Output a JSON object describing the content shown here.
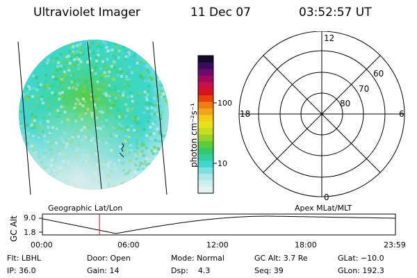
{
  "header": {
    "instrument": "Ultraviolet Imager",
    "date": "11 Dec 07",
    "time": "03:52:57 UT"
  },
  "colorbar": {
    "label": "photon cm⁻²s⁻¹",
    "ticks": [
      "100",
      "10"
    ],
    "colors": [
      "#e6f2f2",
      "#cfeeee",
      "#b3e6e6",
      "#7fdede",
      "#3fd6d0",
      "#2ecfa0",
      "#35c96a",
      "#5ecc3a",
      "#97d12c",
      "#c6dc20",
      "#e6e21e",
      "#f2cc1a",
      "#f2a51a",
      "#ee7d14",
      "#e6400e",
      "#d8121e",
      "#c80f46",
      "#a00c5a",
      "#6e0a6e",
      "#3a0a5e",
      "#140a2e"
    ]
  },
  "polar": {
    "mlt_labels": {
      "top": "12",
      "left": "18",
      "right": "6",
      "bottom": "0"
    },
    "lat_labels": [
      "60",
      "70",
      "80"
    ]
  },
  "timeline": {
    "left_label": "Geographic Lat/Lon",
    "right_label": "Apex MLat/MLT",
    "y_axis_title": "GC Alt",
    "y_ticks": [
      "9.0",
      "1.8"
    ],
    "x_ticks": [
      "00:00",
      "06:00",
      "12:00",
      "18:00",
      "23:59"
    ],
    "current_time_hours": 3.88,
    "current_marker_color": "#e00000"
  },
  "status": {
    "row1": [
      {
        "key": "flt",
        "text": "Flt: LBHL"
      },
      {
        "key": "door",
        "text": "Door: Open"
      },
      {
        "key": "mode",
        "text": "Mode: Normal"
      },
      {
        "key": "gcalt",
        "text": "GC Alt: 3.7 Re"
      },
      {
        "key": "glat",
        "text": "GLat: −10.0"
      }
    ],
    "row2": [
      {
        "key": "ip",
        "text": "IP: 36.0"
      },
      {
        "key": "gain",
        "text": "Gain: 14"
      },
      {
        "key": "dsp",
        "text": "Dsp:    4.3"
      },
      {
        "key": "seq",
        "text": "Seq: 39"
      },
      {
        "key": "glon",
        "text": "GLon: 192.3"
      }
    ]
  }
}
